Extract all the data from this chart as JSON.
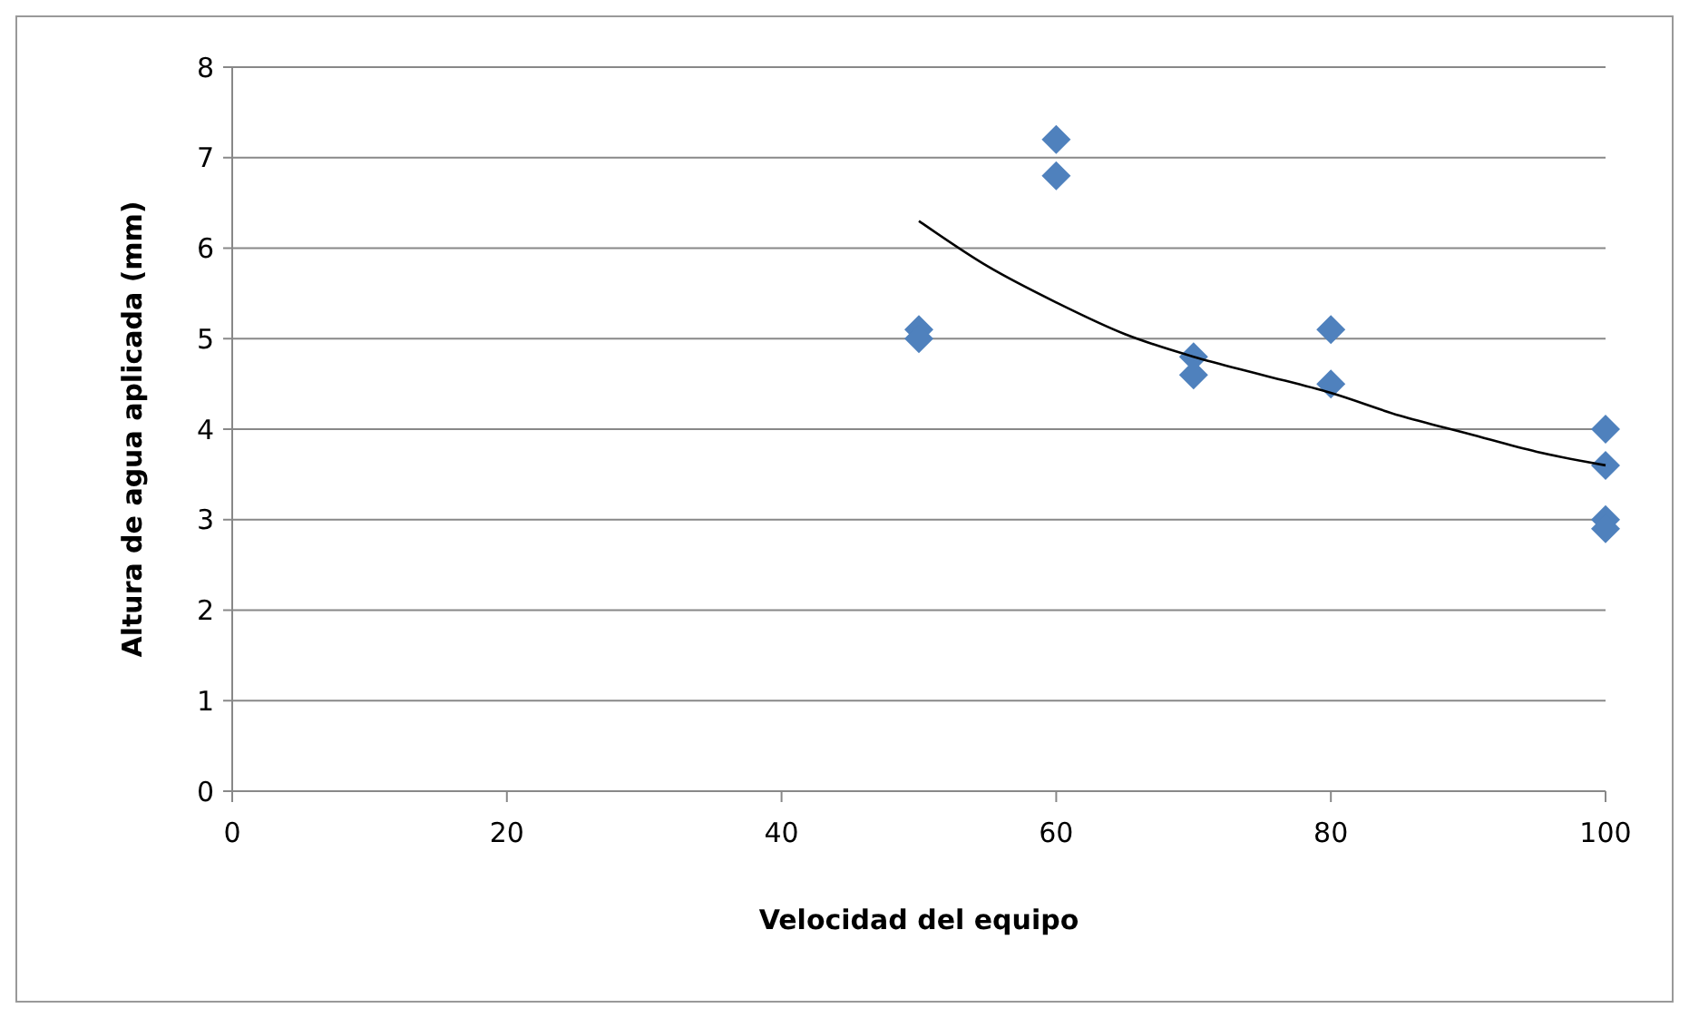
{
  "chart_data": {
    "type": "scatter",
    "xlabel": "Velocidad del equipo",
    "ylabel": "Altura de agua aplicada (mm)",
    "xlim": [
      0,
      100
    ],
    "xticks": [
      0,
      20,
      40,
      60,
      80,
      100
    ],
    "ylim": [
      0,
      8
    ],
    "yticks": [
      0,
      1,
      2,
      3,
      4,
      5,
      6,
      7,
      8
    ],
    "grid": "y",
    "series": [
      {
        "color": "#4f81bd",
        "marker": "diamond",
        "x": [
          50,
          50,
          60,
          60,
          70,
          70,
          80,
          80,
          100,
          100,
          100,
          100
        ],
        "values": [
          5.1,
          5.0,
          7.2,
          6.8,
          4.8,
          4.6,
          5.1,
          4.5,
          4.0,
          3.6,
          3.0,
          2.9
        ]
      },
      {
        "type": "line",
        "color": "#000000",
        "marker": "none",
        "line_style": "solid",
        "x": [
          50,
          55,
          60,
          65,
          70,
          75,
          80,
          85,
          90,
          95,
          100
        ],
        "values": [
          6.3,
          5.8,
          5.4,
          5.05,
          4.8,
          4.6,
          4.4,
          4.15,
          3.95,
          3.75,
          3.6
        ]
      }
    ]
  }
}
